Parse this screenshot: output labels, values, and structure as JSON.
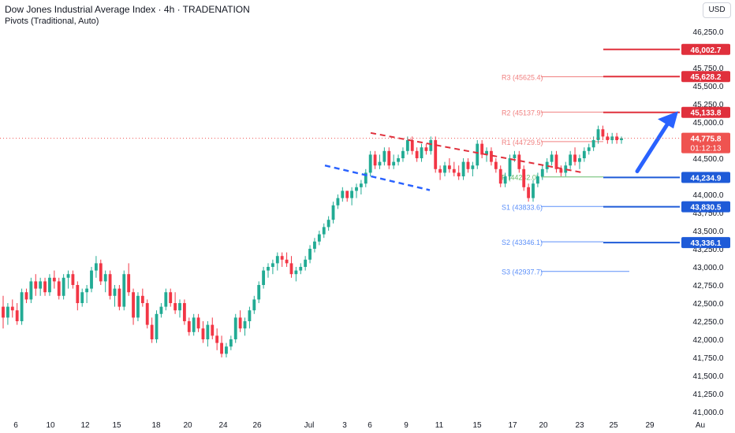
{
  "header": {
    "title": "Dow Jones Industrial Average Index · 4h · TRADENATION",
    "subtitle": "Pivots (Traditional, Auto)",
    "currency": "USD"
  },
  "colors": {
    "up": "#26a69a",
    "down": "#ef5350",
    "bull_body": "#22ab94",
    "bear_body": "#f23645",
    "resistance": "#e0303c",
    "support": "#1e5bd8",
    "pivot_p": "#4caf50",
    "arrow": "#2962ff"
  },
  "chart_data": {
    "type": "candlestick",
    "symbol": "Dow Jones Industrial Average Index",
    "timeframe": "4h",
    "ylim": [
      41000,
      46450
    ],
    "y_ticks": [
      "46,250.0",
      "46,000.0",
      "45,750.0",
      "45,500.0",
      "45,250.0",
      "45,000.0",
      "44,750.0",
      "44,500.0",
      "44,250.0",
      "44,000.0",
      "43,750.0",
      "43,500.0",
      "43,250.0",
      "43,000.0",
      "42,750.0",
      "42,500.0",
      "42,250.0",
      "42,000.0",
      "41,750.0",
      "41,500.0",
      "41,250.0",
      "41,000.0"
    ],
    "x_ticks": [
      "6",
      "10",
      "12",
      "15",
      "18",
      "20",
      "24",
      "26",
      "Jul",
      "3",
      "6",
      "9",
      "11",
      "15",
      "17",
      "20",
      "23",
      "25",
      "29",
      "Au"
    ],
    "last_price": "44,775.8",
    "countdown": "01:12:13",
    "pivots": [
      {
        "label": "R3",
        "value": "45625.4",
        "kind": "resistance"
      },
      {
        "label": "R2",
        "value": "45137.9",
        "kind": "resistance"
      },
      {
        "label": "R1",
        "value": "44729.5",
        "kind": "resistance"
      },
      {
        "label": "P",
        "value": "44242.0",
        "kind": "pivot"
      },
      {
        "label": "S1",
        "value": "43833.6",
        "kind": "support"
      },
      {
        "label": "S2",
        "value": "43346.1",
        "kind": "support"
      },
      {
        "label": "S3",
        "value": "42937.7",
        "kind": "support"
      }
    ],
    "key_levels": [
      {
        "value": "46,002.7",
        "kind": "resistance"
      },
      {
        "value": "45,628.2",
        "kind": "resistance"
      },
      {
        "value": "45,133.8",
        "kind": "resistance"
      },
      {
        "value": "44,234.9",
        "kind": "support"
      },
      {
        "value": "43,830.5",
        "kind": "support"
      },
      {
        "value": "43,336.1",
        "kind": "support"
      }
    ],
    "candles": [
      [
        42450,
        42600,
        42150,
        42300
      ],
      [
        42300,
        42500,
        42200,
        42450
      ],
      [
        42450,
        42550,
        42300,
        42400
      ],
      [
        42400,
        42500,
        42200,
        42250
      ],
      [
        42250,
        42700,
        42200,
        42650
      ],
      [
        42650,
        42700,
        42500,
        42550
      ],
      [
        42550,
        42850,
        42500,
        42800
      ],
      [
        42800,
        42900,
        42600,
        42700
      ],
      [
        42700,
        42850,
        42600,
        42800
      ],
      [
        42800,
        42850,
        42600,
        42650
      ],
      [
        42650,
        42900,
        42600,
        42850
      ],
      [
        42850,
        42950,
        42700,
        42800
      ],
      [
        42800,
        42850,
        42550,
        42600
      ],
      [
        42600,
        42900,
        42550,
        42850
      ],
      [
        42850,
        42950,
        42700,
        42900
      ],
      [
        42900,
        42950,
        42700,
        42750
      ],
      [
        42750,
        42800,
        42400,
        42500
      ],
      [
        42500,
        42700,
        42450,
        42650
      ],
      [
        42650,
        42750,
        42500,
        42700
      ],
      [
        42700,
        43000,
        42650,
        42950
      ],
      [
        42950,
        43150,
        42850,
        43050
      ],
      [
        43050,
        43100,
        42750,
        42800
      ],
      [
        42800,
        42950,
        42650,
        42900
      ],
      [
        42900,
        42950,
        42550,
        42600
      ],
      [
        42600,
        42750,
        42450,
        42700
      ],
      [
        42700,
        42750,
        42400,
        42450
      ],
      [
        42450,
        42950,
        42400,
        42900
      ],
      [
        42900,
        43050,
        42600,
        42650
      ],
      [
        42650,
        42700,
        42200,
        42300
      ],
      [
        42300,
        42650,
        42250,
        42600
      ],
      [
        42600,
        42700,
        42450,
        42500
      ],
      [
        42500,
        42550,
        42150,
        42200
      ],
      [
        42200,
        42300,
        41950,
        42000
      ],
      [
        42000,
        42400,
        41950,
        42350
      ],
      [
        42350,
        42500,
        42300,
        42450
      ],
      [
        42450,
        42700,
        42400,
        42650
      ],
      [
        42650,
        42700,
        42450,
        42500
      ],
      [
        42500,
        42650,
        42350,
        42400
      ],
      [
        42400,
        42550,
        42300,
        42500
      ],
      [
        42500,
        42550,
        42200,
        42250
      ],
      [
        42250,
        42300,
        42050,
        42100
      ],
      [
        42100,
        42350,
        42050,
        42300
      ],
      [
        42300,
        42350,
        42100,
        42150
      ],
      [
        42150,
        42250,
        41950,
        42000
      ],
      [
        42000,
        42250,
        41900,
        42200
      ],
      [
        42200,
        42300,
        42000,
        42050
      ],
      [
        42050,
        42150,
        41850,
        41950
      ],
      [
        41950,
        42050,
        41750,
        41800
      ],
      [
        41800,
        41950,
        41750,
        41900
      ],
      [
        41900,
        42050,
        41850,
        42000
      ],
      [
        42000,
        42350,
        41950,
        42300
      ],
      [
        42300,
        42400,
        42100,
        42150
      ],
      [
        42150,
        42300,
        42050,
        42250
      ],
      [
        42250,
        42450,
        42150,
        42400
      ],
      [
        42400,
        42600,
        42350,
        42550
      ],
      [
        42550,
        42800,
        42500,
        42750
      ],
      [
        42750,
        43000,
        42700,
        42950
      ],
      [
        42950,
        43050,
        42850,
        43000
      ],
      [
        43000,
        43100,
        42900,
        43050
      ],
      [
        43050,
        43200,
        42950,
        43150
      ],
      [
        43150,
        43200,
        43000,
        43100
      ],
      [
        43100,
        43200,
        43000,
        43050
      ],
      [
        43050,
        43150,
        42850,
        42900
      ],
      [
        42900,
        43000,
        42800,
        42950
      ],
      [
        42950,
        43050,
        42900,
        43000
      ],
      [
        43000,
        43150,
        42950,
        43100
      ],
      [
        43100,
        43300,
        43050,
        43250
      ],
      [
        43250,
        43400,
        43200,
        43350
      ],
      [
        43350,
        43500,
        43300,
        43450
      ],
      [
        43450,
        43600,
        43400,
        43550
      ],
      [
        43550,
        43700,
        43500,
        43650
      ],
      [
        43650,
        43900,
        43600,
        43850
      ],
      [
        43850,
        44000,
        43800,
        43950
      ],
      [
        43950,
        44100,
        43900,
        44050
      ],
      [
        44050,
        44050,
        43900,
        43950
      ],
      [
        43950,
        44100,
        43850,
        44050
      ],
      [
        44050,
        44150,
        43950,
        44100
      ],
      [
        44100,
        44200,
        44000,
        44150
      ],
      [
        44150,
        44350,
        44100,
        44300
      ],
      [
        44300,
        44600,
        44250,
        44550
      ],
      [
        44550,
        44600,
        44350,
        44400
      ],
      [
        44400,
        44550,
        44350,
        44450
      ],
      [
        44450,
        44650,
        44400,
        44600
      ],
      [
        44600,
        44650,
        44350,
        44400
      ],
      [
        44400,
        44550,
        44350,
        44450
      ],
      [
        44450,
        44550,
        44400,
        44500
      ],
      [
        44500,
        44650,
        44450,
        44600
      ],
      [
        44600,
        44800,
        44550,
        44750
      ],
      [
        44750,
        44800,
        44550,
        44600
      ],
      [
        44600,
        44650,
        44450,
        44500
      ],
      [
        44500,
        44700,
        44450,
        44650
      ],
      [
        44650,
        44700,
        44550,
        44600
      ],
      [
        44600,
        44800,
        44550,
        44750
      ],
      [
        44750,
        44800,
        44300,
        44350
      ],
      [
        44350,
        44400,
        44200,
        44300
      ],
      [
        44300,
        44450,
        44250,
        44400
      ],
      [
        44400,
        44500,
        44300,
        44350
      ],
      [
        44350,
        44450,
        44250,
        44300
      ],
      [
        44300,
        44400,
        44200,
        44250
      ],
      [
        44250,
        44500,
        44200,
        44450
      ],
      [
        44450,
        44500,
        44300,
        44350
      ],
      [
        44350,
        44450,
        44250,
        44400
      ],
      [
        44400,
        44750,
        44350,
        44700
      ],
      [
        44700,
        44750,
        44500,
        44550
      ],
      [
        44550,
        44650,
        44450,
        44600
      ],
      [
        44600,
        44650,
        44400,
        44450
      ],
      [
        44450,
        44500,
        44300,
        44350
      ],
      [
        44350,
        44400,
        44100,
        44150
      ],
      [
        44150,
        44300,
        44100,
        44250
      ],
      [
        44250,
        44550,
        44200,
        44500
      ],
      [
        44500,
        44600,
        44450,
        44550
      ],
      [
        44550,
        44600,
        44300,
        44350
      ],
      [
        44350,
        44400,
        44050,
        44100
      ],
      [
        44100,
        44150,
        43900,
        43950
      ],
      [
        43950,
        44200,
        43900,
        44150
      ],
      [
        44150,
        44300,
        44100,
        44250
      ],
      [
        44250,
        44400,
        44200,
        44350
      ],
      [
        44350,
        44500,
        44300,
        44450
      ],
      [
        44450,
        44600,
        44400,
        44550
      ],
      [
        44550,
        44600,
        44300,
        44350
      ],
      [
        44350,
        44400,
        44250,
        44300
      ],
      [
        44300,
        44450,
        44250,
        44400
      ],
      [
        44400,
        44600,
        44350,
        44550
      ],
      [
        44550,
        44650,
        44400,
        44450
      ],
      [
        44450,
        44550,
        44350,
        44500
      ],
      [
        44500,
        44650,
        44450,
        44600
      ],
      [
        44600,
        44700,
        44550,
        44650
      ],
      [
        44650,
        44800,
        44600,
        44750
      ],
      [
        44750,
        44950,
        44700,
        44900
      ],
      [
        44900,
        44950,
        44750,
        44800
      ],
      [
        44800,
        44850,
        44700,
        44750
      ],
      [
        44750,
        44850,
        44700,
        44800
      ],
      [
        44800,
        44850,
        44700,
        44750
      ],
      [
        44750,
        44800,
        44700,
        44776
      ]
    ],
    "drawings": {
      "resistance_trendline": "dashed red descending line over the July consolidation",
      "support_trendline": "dashed blue descending line under the July consolidation",
      "arrow": "blue upward arrow pointing toward 45,133.8"
    }
  }
}
